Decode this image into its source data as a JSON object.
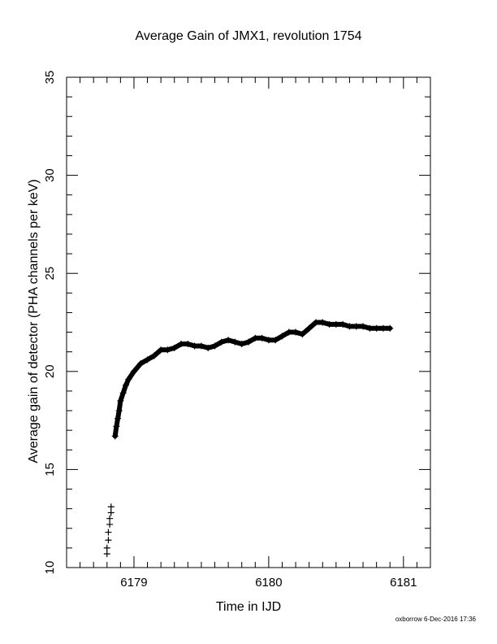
{
  "chart_data": {
    "type": "scatter",
    "title": "Average Gain of JMX1, revolution 1754",
    "xlabel": "Time in IJD",
    "ylabel": "Average gain of detector (PHA channels per keV)",
    "xlim": [
      6178.5,
      6181.2
    ],
    "ylim": [
      10,
      35
    ],
    "xticks": [
      6179,
      6180,
      6181
    ],
    "yticks": [
      10,
      15,
      20,
      25,
      30,
      35
    ],
    "marker": "plus",
    "x": [
      6178.8,
      6178.8,
      6178.81,
      6178.81,
      6178.82,
      6178.82,
      6178.83,
      6178.83,
      6178.86,
      6178.87,
      6178.88,
      6178.89,
      6178.9,
      6178.92,
      6178.94,
      6178.96,
      6179.0,
      6179.05,
      6179.1,
      6179.15,
      6179.2,
      6179.25,
      6179.3,
      6179.35,
      6179.4,
      6179.45,
      6179.5,
      6179.55,
      6179.6,
      6179.65,
      6179.7,
      6179.75,
      6179.8,
      6179.85,
      6179.9,
      6179.95,
      6180.0,
      6180.05,
      6180.1,
      6180.15,
      6180.2,
      6180.25,
      6180.3,
      6180.35,
      6180.4,
      6180.45,
      6180.5,
      6180.55,
      6180.6,
      6180.65,
      6180.7,
      6180.75,
      6180.8,
      6180.85,
      6180.9
    ],
    "y": [
      10.7,
      11.0,
      11.4,
      11.8,
      12.2,
      12.5,
      12.8,
      13.1,
      16.7,
      17.2,
      17.6,
      18.0,
      18.5,
      18.9,
      19.3,
      19.6,
      20.0,
      20.4,
      20.6,
      20.8,
      21.1,
      21.1,
      21.2,
      21.4,
      21.4,
      21.3,
      21.3,
      21.2,
      21.3,
      21.5,
      21.6,
      21.5,
      21.4,
      21.5,
      21.7,
      21.7,
      21.6,
      21.6,
      21.8,
      22.0,
      22.0,
      21.9,
      22.2,
      22.5,
      22.5,
      22.4,
      22.4,
      22.4,
      22.3,
      22.3,
      22.3,
      22.2,
      22.2,
      22.2,
      22.2
    ]
  },
  "footer": "oxborrow 6-Dec-2016 17:36"
}
